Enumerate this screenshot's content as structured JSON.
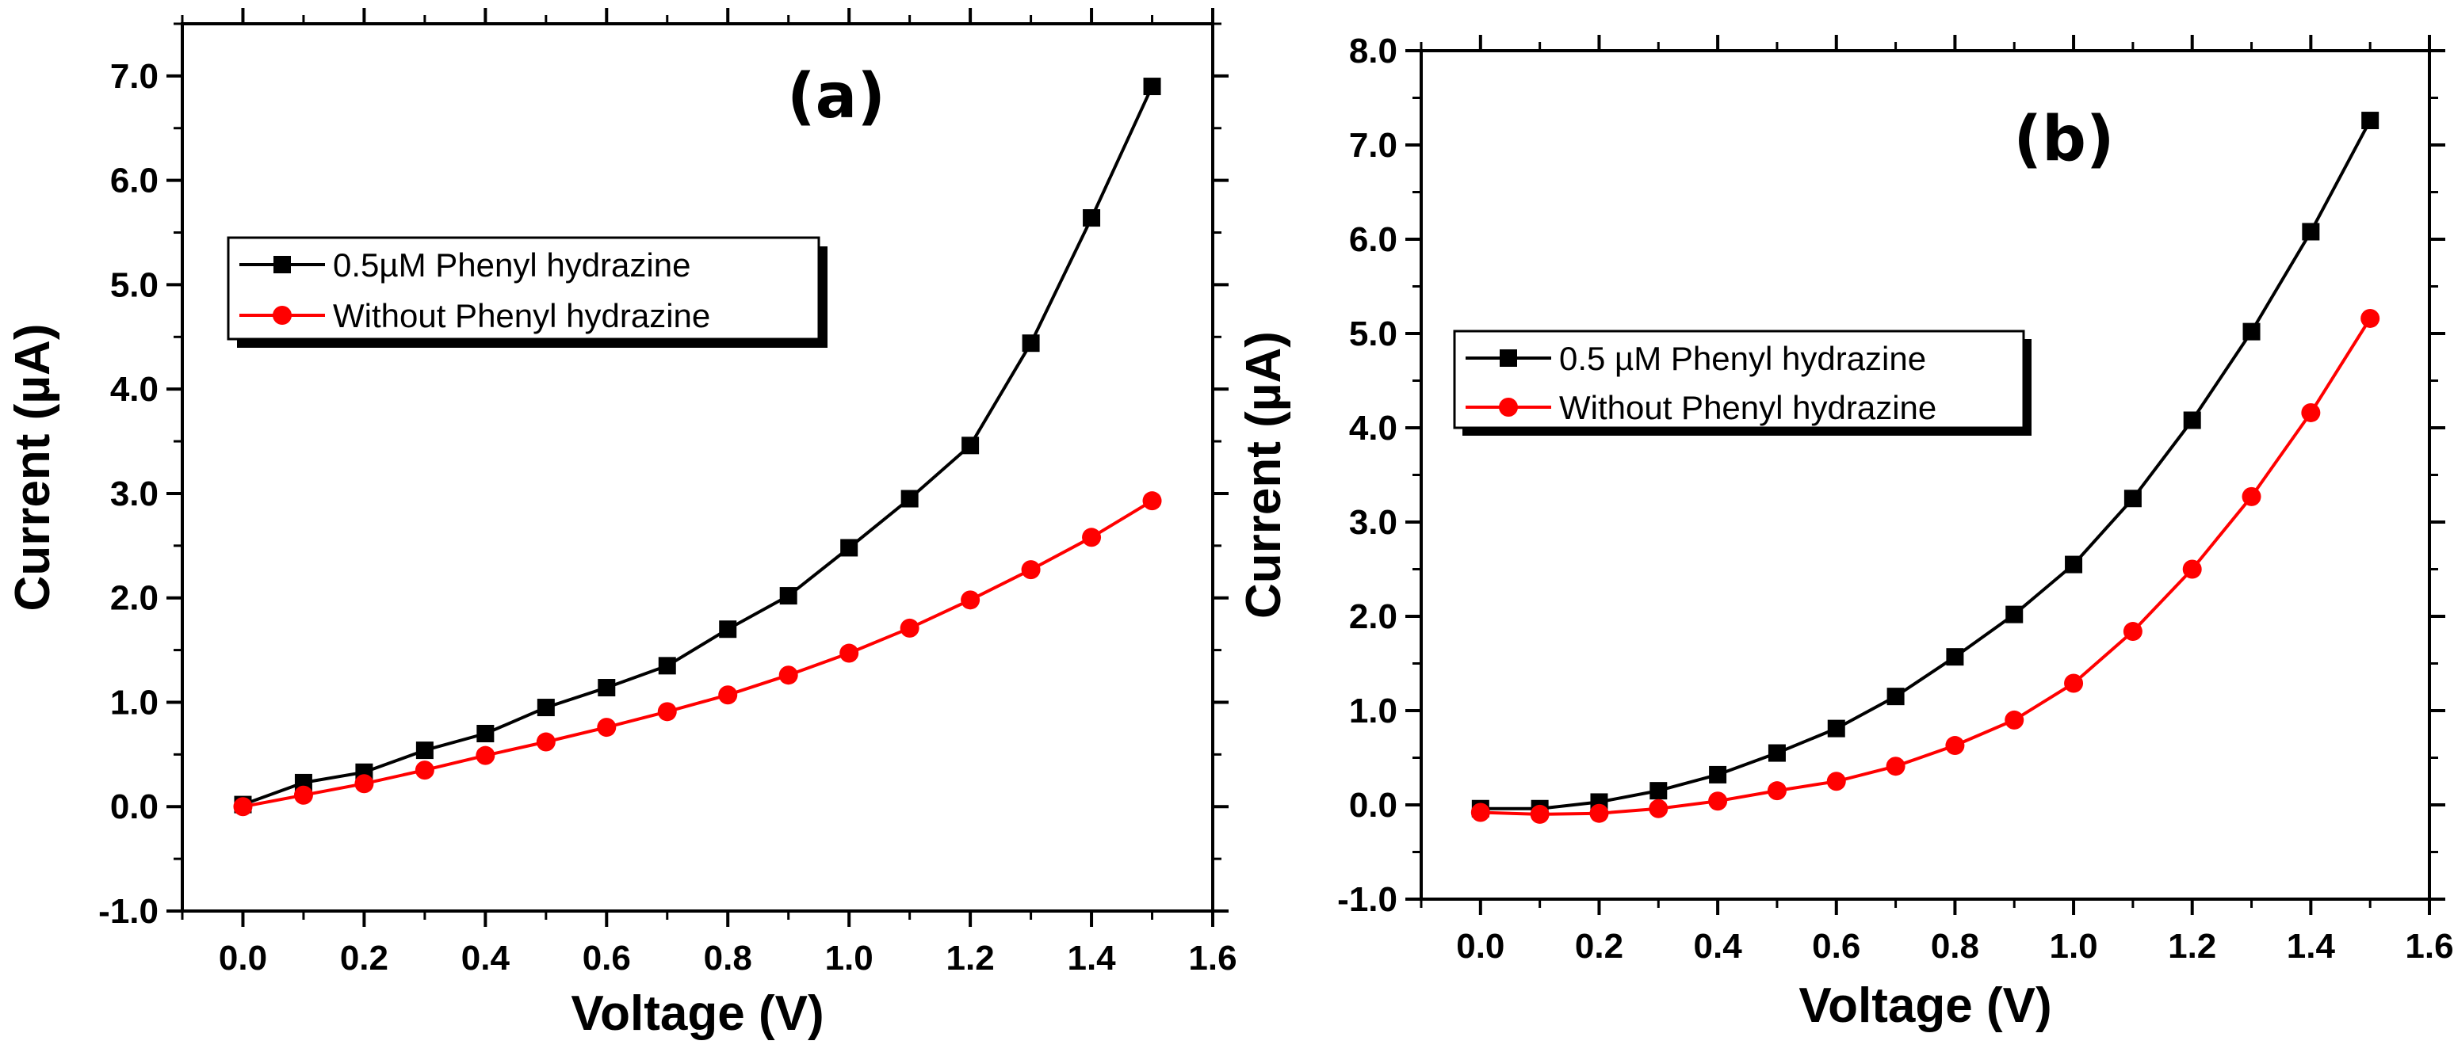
{
  "chart_data": [
    {
      "type": "line",
      "panel_label": "(a)",
      "xlabel": "Voltage (V)",
      "ylabel": "Current (µA)",
      "xlim": [
        -0.1,
        1.6
      ],
      "ylim": [
        -1.0,
        7.5
      ],
      "xticks": [
        "0.0",
        "0.2",
        "0.4",
        "0.6",
        "0.8",
        "1.0",
        "1.2",
        "1.4",
        "1.6"
      ],
      "yticks": [
        "-1.0",
        "0.0",
        "1.0",
        "2.0",
        "3.0",
        "4.0",
        "5.0",
        "6.0",
        "7.0"
      ],
      "legend_position": "upper-left",
      "x": [
        0.0,
        0.1,
        0.2,
        0.3,
        0.4,
        0.5,
        0.6,
        0.7,
        0.8,
        0.9,
        1.0,
        1.1,
        1.2,
        1.3,
        1.4,
        1.5
      ],
      "series": [
        {
          "name": "0.5µM Phenyl hydrazine",
          "color": "#000000",
          "marker": "square",
          "values": [
            0.02,
            0.23,
            0.33,
            0.54,
            0.7,
            0.95,
            1.14,
            1.35,
            1.7,
            2.02,
            2.48,
            2.95,
            3.46,
            4.44,
            5.64,
            6.9
          ]
        },
        {
          "name": "Without Phenyl hydrazine",
          "color": "#ff0000",
          "marker": "circle",
          "values": [
            0.0,
            0.11,
            0.22,
            0.35,
            0.49,
            0.62,
            0.76,
            0.91,
            1.07,
            1.26,
            1.47,
            1.71,
            1.98,
            2.27,
            2.58,
            2.93
          ]
        }
      ]
    },
    {
      "type": "line",
      "panel_label": "(b)",
      "xlabel": "Voltage (V)",
      "ylabel": "Current (µA)",
      "xlim": [
        -0.1,
        1.6
      ],
      "ylim": [
        -1.0,
        8.0
      ],
      "xticks": [
        "0.0",
        "0.2",
        "0.4",
        "0.6",
        "0.8",
        "1.0",
        "1.2",
        "1.4",
        "1.6"
      ],
      "yticks": [
        "-1.0",
        "0.0",
        "1.0",
        "2.0",
        "3.0",
        "4.0",
        "5.0",
        "6.0",
        "7.0",
        "8.0"
      ],
      "legend_position": "center-left",
      "x": [
        0.0,
        0.1,
        0.2,
        0.3,
        0.4,
        0.5,
        0.6,
        0.7,
        0.8,
        0.9,
        1.0,
        1.1,
        1.2,
        1.3,
        1.4,
        1.5
      ],
      "series": [
        {
          "name": "0.5 µM Phenyl hydrazine",
          "color": "#000000",
          "marker": "square",
          "values": [
            -0.04,
            -0.04,
            0.03,
            0.15,
            0.32,
            0.55,
            0.81,
            1.15,
            1.57,
            2.02,
            2.55,
            3.25,
            4.08,
            5.02,
            6.08,
            7.26
          ]
        },
        {
          "name": "Without Phenyl hydrazine",
          "color": "#ff0000",
          "marker": "circle",
          "values": [
            -0.08,
            -0.1,
            -0.09,
            -0.04,
            0.04,
            0.15,
            0.25,
            0.41,
            0.63,
            0.9,
            1.29,
            1.84,
            2.5,
            3.27,
            4.16,
            5.16
          ]
        }
      ]
    }
  ]
}
